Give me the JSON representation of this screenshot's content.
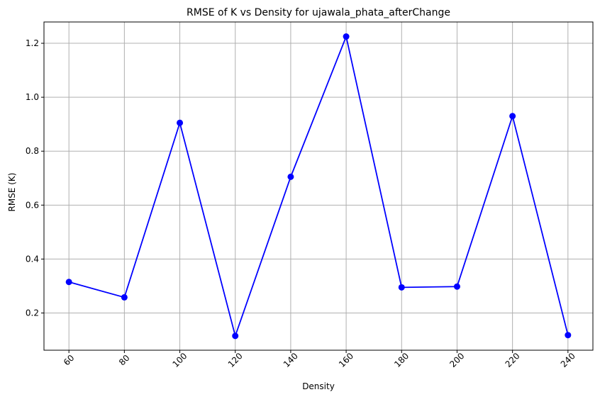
{
  "chart_data": {
    "type": "line",
    "title": "RMSE of K vs Density for ujawala_phata_afterChange",
    "xlabel": "Density",
    "ylabel": "RMSE (K)",
    "x": [
      60,
      80,
      100,
      120,
      140,
      160,
      180,
      200,
      220,
      240
    ],
    "x_tick_labels": [
      "60",
      "80",
      "100",
      "120",
      "140",
      "160",
      "180",
      "200",
      "220",
      "240"
    ],
    "y_ticks": [
      0.2,
      0.4,
      0.6,
      0.8,
      1.0,
      1.2
    ],
    "y_tick_labels": [
      "0.2",
      "0.4",
      "0.6",
      "0.8",
      "1.0",
      "1.2"
    ],
    "xlim": [
      51,
      249
    ],
    "ylim": [
      0.062,
      1.279
    ],
    "grid": true,
    "series": [
      {
        "values": [
          0.315,
          0.258,
          0.905,
          0.115,
          0.705,
          1.225,
          0.295,
          0.298,
          0.93,
          0.118
        ],
        "color": "#0000ff",
        "marker": "circle"
      }
    ]
  }
}
